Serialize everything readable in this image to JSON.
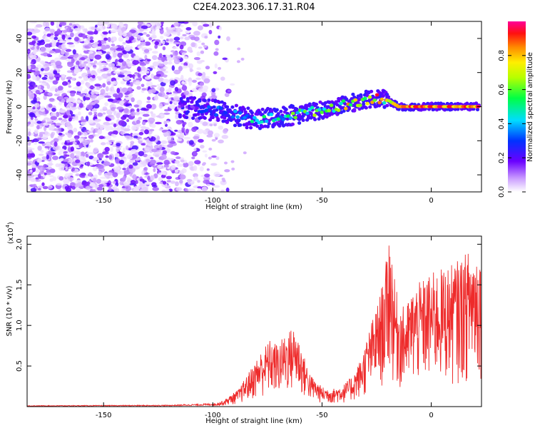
{
  "title": "C2E4.2023.306.17.31.R04",
  "colors": {
    "background": "#ffffff",
    "snr_line": "#ee2b2b",
    "axis": "#000000"
  },
  "chart_data": [
    {
      "type": "heatmap",
      "name": "spectrogram",
      "xlabel": "Height of straight line (km)",
      "ylabel": "Frequency (Hz)",
      "xlim": [
        -185,
        23
      ],
      "ylim": [
        -50,
        50
      ],
      "x_ticks": [
        -150,
        -100,
        -50,
        0
      ],
      "y_ticks": [
        -40,
        -20,
        0,
        20,
        40
      ],
      "x_tick_labels": [
        "-150",
        "-100",
        "-50",
        "0"
      ],
      "y_tick_labels": [
        "-40",
        "-20",
        "0",
        "20",
        "40"
      ],
      "noise_region_x": [
        -185,
        -100
      ],
      "signal_track": {
        "x": [
          -115,
          -100,
          -90,
          -80,
          -70,
          -60,
          -50,
          -40,
          -30,
          -25,
          -20,
          -15,
          -10,
          0,
          10,
          22
        ],
        "y": [
          0,
          -2,
          -5,
          -8,
          -6,
          -4,
          -2,
          1,
          4,
          5,
          4,
          0,
          0,
          0,
          0,
          0
        ],
        "amplitude": [
          0.15,
          0.3,
          0.35,
          0.45,
          0.5,
          0.55,
          0.6,
          0.7,
          0.8,
          0.85,
          0.65,
          0.9,
          0.9,
          0.95,
          0.9,
          0.95
        ]
      },
      "colorbar": {
        "label": "Normalized spectral amplitude",
        "range": [
          0,
          1
        ],
        "ticks": [
          0.0,
          0.2,
          0.4,
          0.6,
          0.8
        ],
        "tick_labels": [
          "0.0",
          "0.2",
          "0.4",
          "0.6",
          "0.8"
        ]
      }
    },
    {
      "type": "line",
      "name": "snr",
      "xlabel": "Height of straight line (km)",
      "ylabel": "SNR (10 * v/v)",
      "y_multiplier_label": "(x10",
      "y_multiplier_exp": "4",
      "y_multiplier_close": ")",
      "xlim": [
        -185,
        23
      ],
      "ylim": [
        0,
        2.1
      ],
      "x_ticks": [
        -150,
        -100,
        -50,
        0
      ],
      "y_ticks": [
        0.5,
        1.0,
        1.5,
        2.0
      ],
      "x_tick_labels": [
        "-150",
        "-100",
        "-50",
        "0"
      ],
      "y_tick_labels": [
        "0.5",
        "1.0",
        "1.5",
        "2.0"
      ],
      "envelope": {
        "x": [
          -185,
          -120,
          -100,
          -95,
          -88,
          -82,
          -78,
          -74,
          -70,
          -66,
          -62,
          -58,
          -55,
          -50,
          -45,
          -40,
          -36,
          -32,
          -28,
          -24,
          -21,
          -19,
          -17,
          -15,
          -12,
          -8,
          -5,
          0,
          5,
          10,
          15,
          19,
          23
        ],
        "y": [
          0.01,
          0.015,
          0.03,
          0.07,
          0.2,
          0.45,
          0.62,
          0.75,
          0.7,
          0.85,
          0.9,
          0.55,
          0.35,
          0.22,
          0.2,
          0.25,
          0.35,
          0.55,
          0.9,
          1.2,
          1.55,
          2.05,
          1.45,
          1.2,
          1.1,
          1.35,
          1.4,
          1.5,
          1.55,
          1.6,
          1.7,
          1.8,
          1.75
        ]
      }
    }
  ]
}
